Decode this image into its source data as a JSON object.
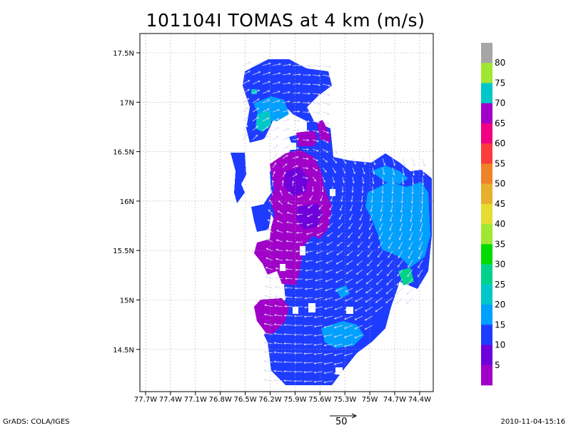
{
  "title": "101104I TOMAS at 4 km (m/s)",
  "footer": {
    "left": "GrADS: COLA/IGES",
    "right": "2010-11-04-15:16",
    "reference_vector_label": "50"
  },
  "axes": {
    "lon_labels": [
      "77.7W",
      "77.4W",
      "77.1W",
      "76.8W",
      "76.5W",
      "76.2W",
      "75.9W",
      "75.6W",
      "75.3W",
      "75W",
      "74.7W",
      "74.4W"
    ],
    "lat_labels": [
      "17.5N",
      "17N",
      "16.5N",
      "16N",
      "15.5N",
      "15N",
      "14.5N"
    ]
  },
  "colorbar": {
    "labels": [
      "80",
      "75",
      "70",
      "65",
      "60",
      "55",
      "50",
      "45",
      "40",
      "35",
      "30",
      "25",
      "20",
      "15",
      "10",
      "5"
    ],
    "colors": [
      "#a6a6a6",
      "#a0e632",
      "#00c8c8",
      "#a000c8",
      "#f00082",
      "#fa3c3c",
      "#f08228",
      "#e6af2d",
      "#e6dc32",
      "#a0e632",
      "#00dc00",
      "#00d28c",
      "#00c8c8",
      "#00a0ff",
      "#1e3cff",
      "#6e00dc",
      "#a000c8"
    ]
  },
  "chart_data": {
    "type": "heatmap",
    "title": "101104I TOMAS at 4 km (m/s)",
    "xlabel": "",
    "ylabel": "",
    "x_range": [
      "77.8W",
      "74.35W"
    ],
    "y_range": [
      "14.1N",
      "17.6N"
    ],
    "grid": true,
    "reference_vector_ms": 50,
    "dominant_wind_speed_ranges_ms": [
      "5-10",
      "10-15",
      "15-20"
    ]
  }
}
